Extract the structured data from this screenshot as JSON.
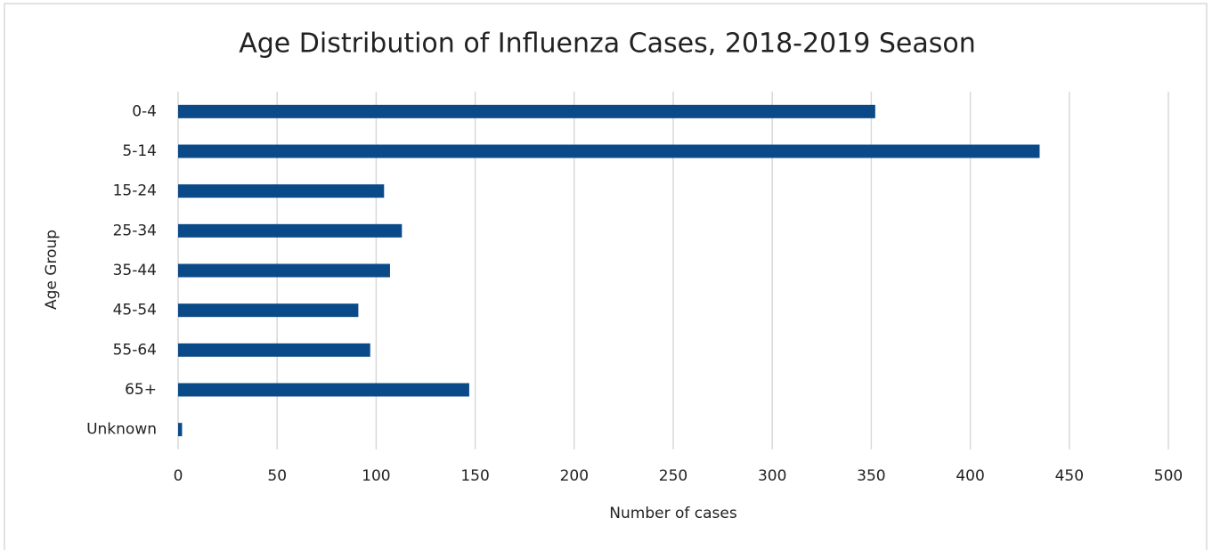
{
  "chart_data": {
    "type": "bar",
    "orientation": "horizontal",
    "title": "Age Distribution of Influenza Cases, 2018-2019 Season",
    "xlabel": "Number of cases",
    "ylabel": "Age Group",
    "categories": [
      "0-4",
      "5-14",
      "15-24",
      "25-34",
      "35-44",
      "45-54",
      "55-64",
      "65+",
      "Unknown"
    ],
    "values": [
      352,
      435,
      104,
      113,
      107,
      91,
      97,
      147,
      2
    ],
    "color": "#0b4a88",
    "xlim": [
      0,
      500
    ],
    "xticks": [
      0,
      50,
      100,
      150,
      200,
      250,
      300,
      350,
      400,
      450,
      500
    ],
    "grid": true
  }
}
